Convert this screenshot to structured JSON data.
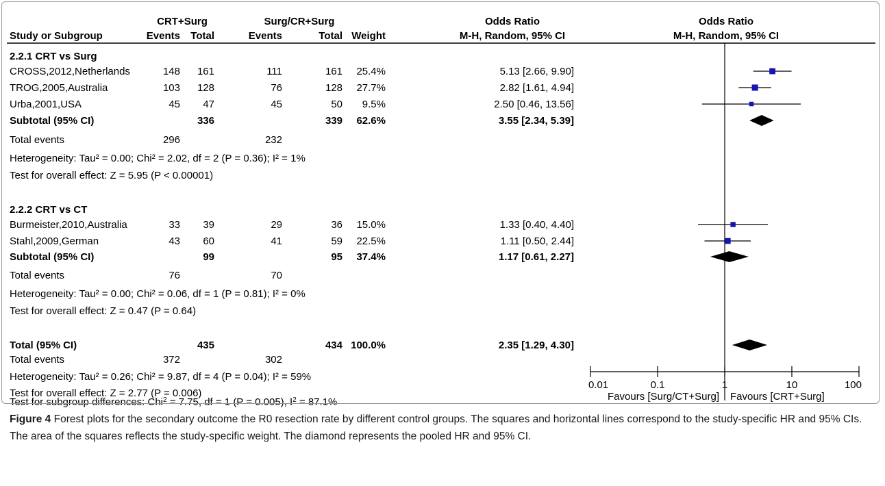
{
  "chart_data": {
    "type": "forest",
    "headers": {
      "group1_name": "CRT+Surg",
      "group2_name": "Surg/CR+Surg",
      "study_col": "Study or Subgroup",
      "events": "Events",
      "total": "Total",
      "weight": "Weight",
      "or_title": "Odds Ratio",
      "or_method": "M-H, Random, 95% CI",
      "plot_title": "Odds Ratio",
      "plot_method": "M-H, Random, 95% CI"
    },
    "subgroups": [
      {
        "title": "2.2.1 CRT vs Surg",
        "studies": [
          {
            "name": "CROSS,2012,Netherlands",
            "e1": "148",
            "t1": "161",
            "e2": "111",
            "t2": "161",
            "weight": "25.4%",
            "ci_text": "5.13 [2.66, 9.90]",
            "or": 5.13,
            "lo": 2.66,
            "hi": 9.9,
            "w": 25.4
          },
          {
            "name": "TROG,2005,Australia",
            "e1": "103",
            "t1": "128",
            "e2": "76",
            "t2": "128",
            "weight": "27.7%",
            "ci_text": "2.82 [1.61, 4.94]",
            "or": 2.82,
            "lo": 1.61,
            "hi": 4.94,
            "w": 27.7
          },
          {
            "name": "Urba,2001,USA",
            "e1": "45",
            "t1": "47",
            "e2": "45",
            "t2": "50",
            "weight": "9.5%",
            "ci_text": "2.50 [0.46, 13.56]",
            "or": 2.5,
            "lo": 0.46,
            "hi": 13.56,
            "w": 9.5
          }
        ],
        "subtotal": {
          "label": "Subtotal (95% CI)",
          "t1": "336",
          "t2": "339",
          "weight": "62.6%",
          "ci_text": "3.55 [2.34, 5.39]",
          "or": 3.55,
          "lo": 2.34,
          "hi": 5.39
        },
        "total_events": {
          "label": "Total events",
          "e1": "296",
          "e2": "232"
        },
        "heterogeneity": "Heterogeneity: Tau² = 0.00; Chi² = 2.02, df = 2 (P = 0.36); I² = 1%",
        "overall_effect": "Test for overall effect: Z = 5.95 (P < 0.00001)"
      },
      {
        "title": "2.2.2 CRT vs CT",
        "studies": [
          {
            "name": "Burmeister,2010,Australia",
            "e1": "33",
            "t1": "39",
            "e2": "29",
            "t2": "36",
            "weight": "15.0%",
            "ci_text": "1.33 [0.40, 4.40]",
            "or": 1.33,
            "lo": 0.4,
            "hi": 4.4,
            "w": 15.0
          },
          {
            "name": "Stahl,2009,German",
            "e1": "43",
            "t1": "60",
            "e2": "41",
            "t2": "59",
            "weight": "22.5%",
            "ci_text": "1.11 [0.50, 2.44]",
            "or": 1.11,
            "lo": 0.5,
            "hi": 2.44,
            "w": 22.5
          }
        ],
        "subtotal": {
          "label": "Subtotal (95% CI)",
          "t1": "99",
          "t2": "95",
          "weight": "37.4%",
          "ci_text": "1.17 [0.61, 2.27]",
          "or": 1.17,
          "lo": 0.61,
          "hi": 2.27
        },
        "total_events": {
          "label": "Total events",
          "e1": "76",
          "e2": "70"
        },
        "heterogeneity": "Heterogeneity: Tau² = 0.00; Chi² = 0.06, df = 1 (P = 0.81); I² = 0%",
        "overall_effect": "Test for overall effect: Z = 0.47 (P = 0.64)"
      }
    ],
    "total": {
      "label": "Total (95% CI)",
      "t1": "435",
      "t2": "434",
      "weight": "100.0%",
      "ci_text": "2.35 [1.29, 4.30]",
      "or": 2.35,
      "lo": 1.29,
      "hi": 4.3
    },
    "total_events": {
      "label": "Total events",
      "e1": "372",
      "e2": "302"
    },
    "heterogeneity": "Heterogeneity: Tau² = 0.26; Chi² = 9.87, df = 4 (P = 0.04); I² = 59%",
    "overall_effect": "Test for overall effect: Z = 2.77 (P = 0.006)",
    "subgroup_diff": {
      "prefix": "Test for subgroup differences: Chi",
      "chi_exp": "2",
      "mid": " = 7.75, df = 1 (P = 0.005), I",
      "i_exp": "2",
      "suffix": " = 87.1%"
    },
    "axis": {
      "scale": "log",
      "ticks": [
        0.01,
        0.1,
        1,
        10,
        100
      ],
      "tick_labels": [
        "0.01",
        "0.1",
        "1",
        "10",
        "100"
      ],
      "xlim": [
        0.01,
        100
      ]
    },
    "favours_left": "Favours [Surg/CT+Surg]",
    "favours_right": "Favours [CRT+Surg]",
    "marker_color": "#1515b0"
  },
  "caption": {
    "label": "Figure 4",
    "text": " Forest plots for the secondary outcome the R0 resection rate by different control groups. The squares and horizontal lines correspond to the study-specific HR and 95% CIs. The area of the squares reflects the study-specific weight. The diamond represents the pooled HR and 95% CI."
  }
}
